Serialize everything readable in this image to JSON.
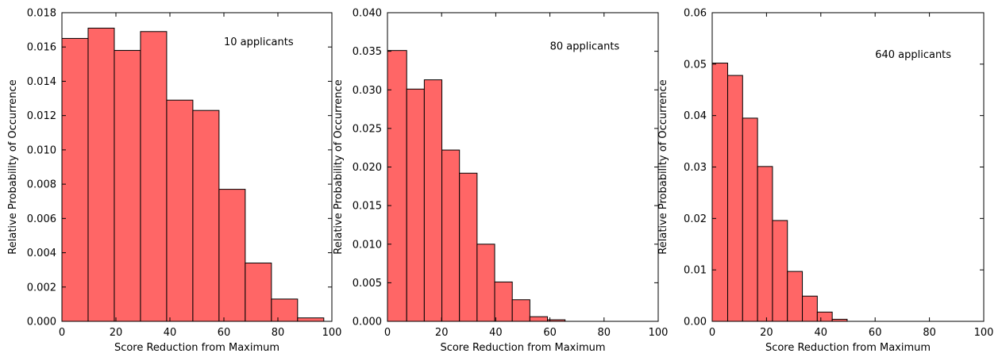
{
  "chart_data": [
    {
      "type": "histogram",
      "annotation": "10 applicants",
      "xlabel": "Score Reduction from Maximum",
      "ylabel": "Relative Probability of Occurrence",
      "xlim": [
        0,
        100
      ],
      "ylim": [
        0,
        0.018
      ],
      "xticks": [
        0,
        20,
        40,
        60,
        80,
        100
      ],
      "yticks": [
        0.0,
        0.002,
        0.004,
        0.006,
        0.008,
        0.01,
        0.012,
        0.014,
        0.016,
        0.018
      ],
      "ytick_decimals": 3,
      "bar_color": "#ff6666",
      "bins": [
        0,
        9.7,
        19.4,
        29.1,
        38.8,
        48.5,
        58.2,
        67.9,
        77.6,
        87.3,
        97.0
      ],
      "values": [
        0.0165,
        0.0171,
        0.0158,
        0.0169,
        0.0129,
        0.0123,
        0.0077,
        0.0034,
        0.0013,
        0.0002
      ],
      "annotation_pos": [
        60,
        0.0161
      ]
    },
    {
      "type": "histogram",
      "annotation": "80 applicants",
      "xlabel": "Score Reduction from Maximum",
      "ylabel": "Relative Probability of Occurrence",
      "xlim": [
        0,
        100
      ],
      "ylim": [
        0,
        0.04
      ],
      "xticks": [
        0,
        20,
        40,
        60,
        80,
        100
      ],
      "yticks": [
        0.0,
        0.005,
        0.01,
        0.015,
        0.02,
        0.025,
        0.03,
        0.035,
        0.04
      ],
      "ytick_decimals": 3,
      "bar_color": "#ff6666",
      "bins": [
        0,
        7.1,
        13.6,
        20.1,
        26.6,
        33.1,
        39.6,
        46.1,
        52.6,
        59.1,
        65.6
      ],
      "values": [
        0.0351,
        0.0301,
        0.0313,
        0.0222,
        0.0192,
        0.01,
        0.0051,
        0.0028,
        0.0006,
        0.0002
      ],
      "annotation_pos": [
        60,
        0.0352
      ]
    },
    {
      "type": "histogram",
      "annotation": "640 applicants",
      "xlabel": "Score Reduction from Maximum",
      "ylabel": "Relative Probability of Occurrence",
      "xlim": [
        0,
        100
      ],
      "ylim": [
        0,
        0.06
      ],
      "xticks": [
        0,
        20,
        40,
        60,
        80,
        100
      ],
      "yticks": [
        0.0,
        0.01,
        0.02,
        0.03,
        0.04,
        0.05,
        0.06
      ],
      "ytick_decimals": 2,
      "bar_color": "#ff6666",
      "bins": [
        0,
        5.7,
        11.2,
        16.7,
        22.2,
        27.7,
        33.2,
        38.7,
        44.2,
        49.7
      ],
      "values": [
        0.0502,
        0.0478,
        0.0395,
        0.0301,
        0.0196,
        0.0097,
        0.0049,
        0.0018,
        0.0004
      ],
      "annotation_pos": [
        60,
        0.0512
      ]
    }
  ]
}
